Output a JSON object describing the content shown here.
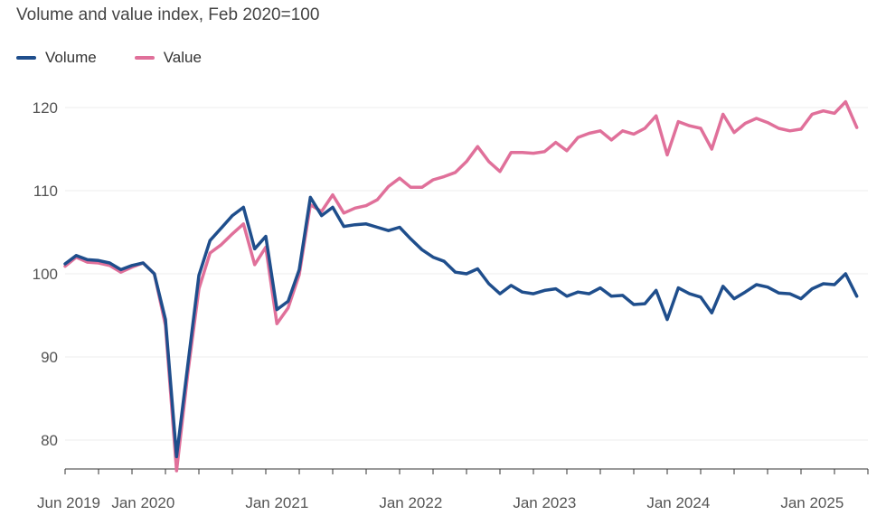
{
  "chart_data": {
    "type": "line",
    "title": "Volume and value index, Feb 2020=100",
    "xlabel": "",
    "ylabel": "",
    "ylim": [
      75,
      122
    ],
    "yticks": [
      80,
      90,
      100,
      110,
      120
    ],
    "grid": true,
    "legend_placement": "top-left",
    "x_start": "2019-06",
    "x_end": "2025-06",
    "xticks": [
      {
        "label": "Jun 2019",
        "date": "2019-06"
      },
      {
        "label": "Jan 2020",
        "date": "2020-01"
      },
      {
        "label": "Jan 2021",
        "date": "2021-01"
      },
      {
        "label": "Jan 2022",
        "date": "2022-01"
      },
      {
        "label": "Jan 2023",
        "date": "2023-01"
      },
      {
        "label": "Jan 2024",
        "date": "2024-01"
      },
      {
        "label": "Jan 2025",
        "date": "2025-01"
      }
    ],
    "series": [
      {
        "name": "Volume",
        "color": "#1f4e8c",
        "values": [
          101.2,
          102.2,
          101.7,
          101.6,
          101.3,
          100.5,
          101.0,
          101.3,
          100.0,
          94.5,
          78.0,
          89.0,
          99.8,
          104.0,
          105.5,
          107.0,
          108.0,
          103.0,
          104.5,
          95.7,
          96.7,
          100.5,
          109.2,
          107.0,
          108.0,
          105.7,
          105.9,
          106.0,
          105.6,
          105.2,
          105.6,
          104.2,
          102.9,
          102.0,
          101.5,
          100.2,
          100.0,
          100.6,
          98.8,
          97.6,
          98.6,
          97.8,
          97.6,
          98.0,
          98.2,
          97.3,
          97.8,
          97.6,
          98.3,
          97.3,
          97.4,
          96.3,
          96.4,
          98.0,
          94.5,
          98.3,
          97.6,
          97.2,
          95.3,
          98.5,
          97.0,
          97.8,
          98.7,
          98.4,
          97.7,
          97.6,
          97.0,
          98.2,
          98.8,
          98.7,
          100.0,
          97.3
        ]
      },
      {
        "name": "Value",
        "color": "#e0709a",
        "values": [
          100.9,
          102.0,
          101.4,
          101.3,
          101.0,
          100.2,
          100.8,
          101.3,
          100.0,
          93.8,
          76.3,
          88.0,
          98.2,
          102.5,
          103.5,
          104.8,
          106.0,
          101.1,
          103.2,
          94.0,
          95.9,
          99.9,
          108.3,
          107.5,
          109.5,
          107.3,
          107.9,
          108.2,
          108.9,
          110.5,
          111.5,
          110.4,
          110.4,
          111.3,
          111.7,
          112.2,
          113.5,
          115.3,
          113.5,
          112.3,
          114.6,
          114.6,
          114.5,
          114.7,
          115.8,
          114.8,
          116.4,
          116.9,
          117.2,
          116.1,
          117.2,
          116.8,
          117.5,
          119.0,
          114.3,
          118.3,
          117.8,
          117.5,
          115.0,
          119.2,
          117.0,
          118.1,
          118.7,
          118.2,
          117.5,
          117.2,
          117.4,
          119.2,
          119.6,
          119.3,
          120.7,
          117.6
        ]
      }
    ]
  }
}
